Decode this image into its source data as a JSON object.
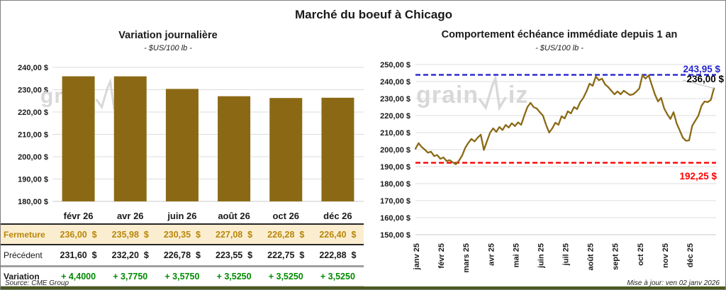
{
  "page": {
    "title": "Marché du boeuf à Chicago",
    "source": "Source: CME Group",
    "updated": "Mise à jour: ven 02 janv 2026",
    "watermark": "grainwiz"
  },
  "colors": {
    "series_gold": "#8B6914",
    "fermeture_text": "#B8860B",
    "fermeture_bg": "#FBEED0",
    "variation_green": "#008A00",
    "annotation_blue": "#2525CE",
    "annotation_red": "#FE0000",
    "gridline": "#DCDCDC",
    "watermark_gray": "#D8D8D8",
    "footer_green": "#4B5A1F"
  },
  "chart_data": [
    {
      "type": "bar",
      "title": "Variation  journalière",
      "subtitle": "- $US/100 lb -",
      "categories": [
        "févr 26",
        "avr 26",
        "juin 26",
        "août 26",
        "oct 26",
        "déc 26"
      ],
      "values": [
        236.0,
        235.98,
        230.35,
        227.08,
        226.28,
        226.4
      ],
      "xlabel": "",
      "ylabel": "$US/100 lb",
      "ylim": [
        180,
        240
      ],
      "ytick_step": 10,
      "grid": true,
      "legend": "none",
      "bar_color": "#8B6914"
    },
    {
      "type": "line",
      "title": "Comportement  échéance immédiate depuis 1 an",
      "subtitle": "- $US/100 lb -",
      "categories": [
        "janv 25",
        "févr 25",
        "mars 25",
        "avr 25",
        "mai 25",
        "juin 25",
        "juil 25",
        "août 25",
        "sept 25",
        "oct 25",
        "nov 25",
        "déc 25"
      ],
      "points_per_month": 8,
      "values": [
        200.5,
        203.8,
        201.5,
        200.0,
        198.2,
        198.8,
        196.2,
        196.8,
        194.6,
        195.4,
        193.3,
        193.8,
        192.5,
        191.4,
        193.5,
        196.5,
        201.0,
        204.0,
        206.3,
        204.8,
        207.0,
        208.8,
        199.8,
        205.0,
        210.0,
        212.5,
        210.4,
        213.3,
        211.5,
        214.5,
        213.0,
        215.5,
        213.8,
        216.0,
        214.6,
        220.0,
        225.0,
        227.5,
        225.0,
        224.2,
        222.0,
        220.0,
        214.6,
        210.0,
        212.5,
        215.8,
        214.6,
        219.6,
        218.3,
        222.5,
        221.3,
        225.0,
        223.8,
        227.9,
        230.4,
        234.2,
        238.8,
        237.5,
        243.0,
        240.8,
        241.7,
        238.3,
        236.7,
        234.6,
        232.5,
        234.2,
        232.5,
        234.6,
        233.3,
        232.1,
        232.5,
        234.0,
        236.0,
        243.7,
        241.7,
        243.7,
        238.0,
        232.5,
        228.3,
        230.4,
        224.2,
        220.8,
        218.0,
        222.0,
        215.4,
        211.2,
        207.0,
        205.2,
        205.4,
        213.9,
        217.0,
        220.0,
        225.8,
        228.3,
        227.9,
        229.2,
        236.0
      ],
      "xlabel": "",
      "ylabel": "$US/100 lb",
      "ylim": [
        150,
        250
      ],
      "ytick_step": 10,
      "grid": true,
      "legend": "none",
      "line_color": "#8B6914",
      "annotations": [
        {
          "value": 243.95,
          "label": "243,95 $",
          "color": "#2525CE",
          "style": "dashed-line"
        },
        {
          "value": 236.0,
          "label": "236,00 $",
          "color": "#000000",
          "style": "last-point-callout"
        },
        {
          "value": 192.25,
          "label": "192,25 $",
          "color": "#FE0000",
          "style": "dashed-line"
        }
      ]
    }
  ],
  "table": {
    "headers": [
      "févr 26",
      "avr 26",
      "juin 26",
      "août 26",
      "oct 26",
      "déc 26"
    ],
    "rows": [
      {
        "label": "Fermeture",
        "values": [
          "236,00  $",
          "235,98  $",
          "230,35  $",
          "227,08  $",
          "226,28  $",
          "226,40  $"
        ]
      },
      {
        "label": "Précédent",
        "values": [
          "231,60  $",
          "232,20  $",
          "226,78  $",
          "223,55  $",
          "222,75  $",
          "222,88  $"
        ]
      },
      {
        "label": "Variation",
        "values": [
          "+ 4,4000",
          "+ 3,7750",
          "+ 3,5750",
          "+ 3,5250",
          "+ 3,5250",
          "+ 3,5250"
        ]
      }
    ]
  }
}
